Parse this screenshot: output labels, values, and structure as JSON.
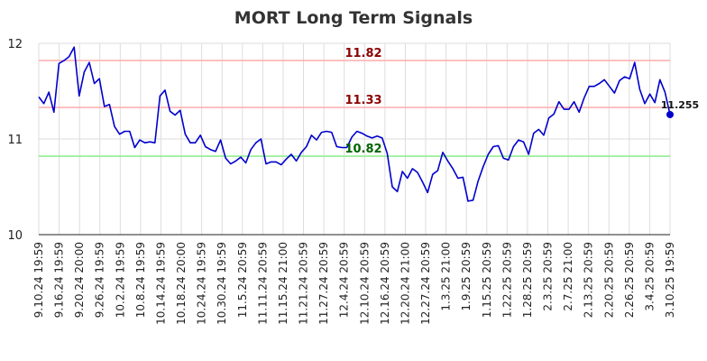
{
  "colors": {
    "line": "#0000cc",
    "resistance": "#ffb3b3",
    "support": "#90ee90",
    "grid": "#dddddd",
    "resistance_label": "#8b0000",
    "support_label": "#006400"
  },
  "chart_data": {
    "type": "line",
    "title": "MORT Long Term Signals",
    "ylim": [
      10,
      12
    ],
    "yticks": [
      "10",
      "11",
      "12"
    ],
    "grid": true,
    "x_tick_labels": [
      "9.10.24 19:59",
      "9.16.24 19:59",
      "9.20.24 20:00",
      "9.26.24 19:59",
      "10.2.24 19:59",
      "10.8.24 19:59",
      "10.14.24 19:59",
      "10.18.24 20:00",
      "10.24.24 19:59",
      "10.30.24 19:59",
      "11.5.24 20:59",
      "11.11.24 20:59",
      "11.15.24 21:00",
      "11.21.24 20:59",
      "11.27.24 20:59",
      "12.4.24 20:59",
      "12.10.24 20:59",
      "12.16.24 20:59",
      "12.20.24 21:00",
      "12.27.24 20:59",
      "1.3.25 21:00",
      "1.9.25 20:59",
      "1.15.25 20:59",
      "1.22.25 20:59",
      "1.28.25 20:59",
      "2.3.25 20:59",
      "2.7.25 21:00",
      "2.13.25 20:59",
      "2.20.25 20:59",
      "2.26.25 20:59",
      "3.4.25 20:59",
      "3.10.25 19:59"
    ],
    "values": [
      11.44,
      11.37,
      11.49,
      11.28,
      11.79,
      11.82,
      11.86,
      11.96,
      11.45,
      11.7,
      11.8,
      11.58,
      11.63,
      11.34,
      11.36,
      11.13,
      11.05,
      11.08,
      11.08,
      10.91,
      10.99,
      10.96,
      10.97,
      10.96,
      11.45,
      11.51,
      11.29,
      11.25,
      11.3,
      11.05,
      10.96,
      10.96,
      11.04,
      10.92,
      10.89,
      10.87,
      10.99,
      10.8,
      10.74,
      10.77,
      10.81,
      10.75,
      10.89,
      10.96,
      11.0,
      10.74,
      10.76,
      10.76,
      10.73,
      10.79,
      10.84,
      10.77,
      10.86,
      10.92,
      11.04,
      10.99,
      11.07,
      11.08,
      11.07,
      10.92,
      10.91,
      10.91,
      11.02,
      11.08,
      11.06,
      11.03,
      11.01,
      11.03,
      11.01,
      10.85,
      10.5,
      10.45,
      10.66,
      10.59,
      10.69,
      10.65,
      10.55,
      10.44,
      10.63,
      10.67,
      10.86,
      10.77,
      10.69,
      10.59,
      10.6,
      10.35,
      10.36,
      10.56,
      10.71,
      10.84,
      10.92,
      10.93,
      10.8,
      10.78,
      10.92,
      10.99,
      10.97,
      10.84,
      11.06,
      11.1,
      11.04,
      11.22,
      11.26,
      11.39,
      11.31,
      11.31,
      11.39,
      11.28,
      11.43,
      11.55,
      11.55,
      11.58,
      11.62,
      11.55,
      11.48,
      11.61,
      11.65,
      11.63,
      11.8,
      11.52,
      11.37,
      11.47,
      11.38,
      11.62,
      11.49,
      11.255
    ],
    "last_value_label": "11.255",
    "horizontal_lines": [
      {
        "label": "11.82",
        "value": 11.82,
        "kind": "resistance"
      },
      {
        "label": "11.33",
        "value": 11.33,
        "kind": "resistance"
      },
      {
        "label": "10.82",
        "value": 10.82,
        "kind": "support"
      }
    ]
  }
}
